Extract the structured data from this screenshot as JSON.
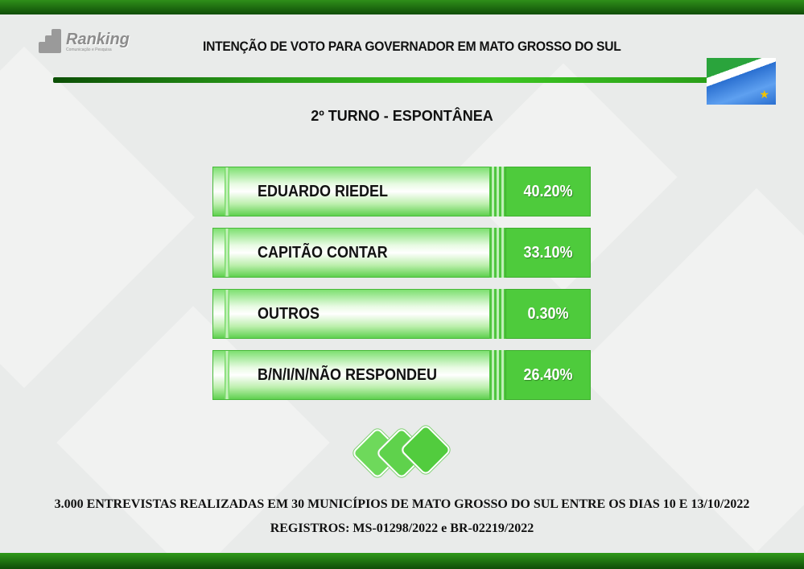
{
  "colors": {
    "green_dark": "#0f4d08",
    "green_bar": "#2a9e19",
    "green_value": "#4ecb3c"
  },
  "logo": {
    "name": "Ranking",
    "tagline": "Comunicação e Pesquisa"
  },
  "header": {
    "title": "INTENÇÃO DE VOTO PARA GOVERNADOR EM MATO GROSSO DO SUL"
  },
  "flag": {
    "icon": "mato-grosso-do-sul-flag-icon"
  },
  "subtitle": "2º TURNO - ESPONTÂNEA",
  "chart_data": {
    "type": "bar",
    "title": "INTENÇÃO DE VOTO PARA GOVERNADOR EM MATO GROSSO DO SUL",
    "subtitle": "2º TURNO - ESPONTÂNEA",
    "categories": [
      "EDUARDO RIEDEL",
      "CAPITÃO CONTAR",
      "OUTROS",
      "B/N/I/N/NÃO RESPONDEU"
    ],
    "values": [
      40.2,
      33.1,
      0.3,
      26.4
    ],
    "value_labels": [
      "40.20%",
      "33.10%",
      "0.30%",
      "26.40%"
    ],
    "xlabel": "",
    "ylabel": ""
  },
  "footer": {
    "line1": "3.000 ENTREVISTAS REALIZADAS EM 30 MUNICÍPIOS DE MATO GROSSO DO SUL ENTRE OS DIAS 10 E 13/10/2022",
    "line2": "REGISTROS: MS-01298/2022 e BR-02219/2022"
  }
}
